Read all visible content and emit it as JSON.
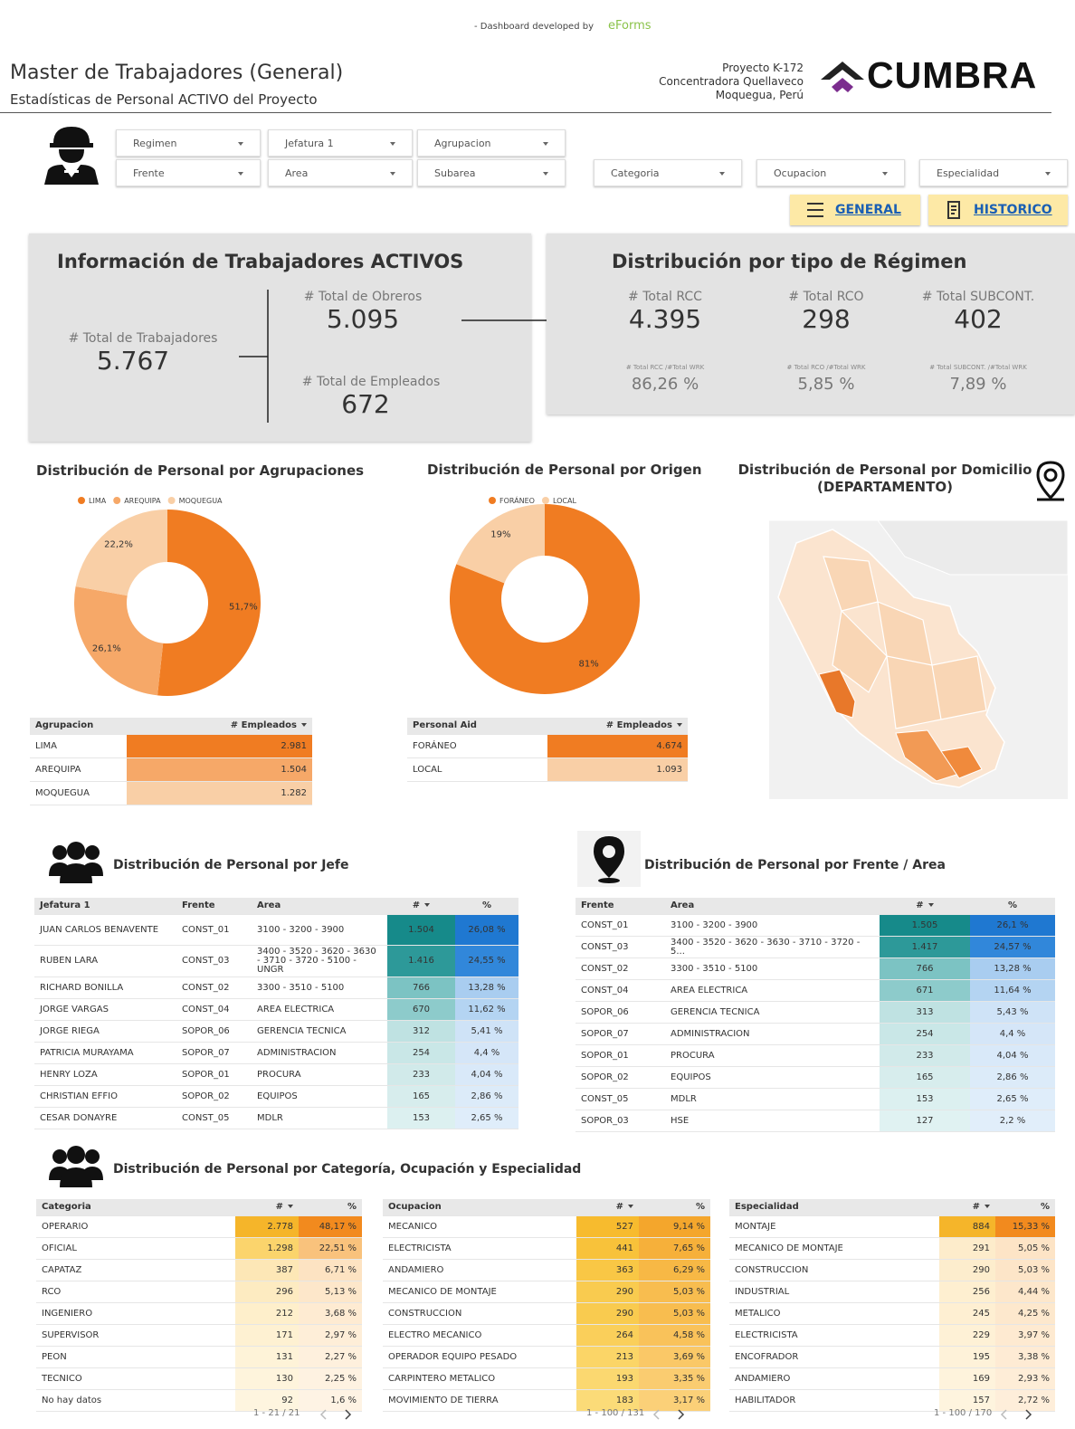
{
  "header": {
    "credit": "- Dashboard developed by",
    "brand": "eForms",
    "title": "Master de Trabajadores (General)",
    "subtitle": "Estadísticas de Personal ACTIVO del Proyecto",
    "project_lines": [
      "Proyecto K-172",
      "Concentradora Quellaveco",
      "Moquegua, Perú"
    ],
    "logo": "CUMBRA"
  },
  "filters": [
    "Regimen",
    "Jefatura 1",
    "Agrupacion",
    "Frente",
    "Area",
    "Subarea",
    "Categoria",
    "Ocupacion",
    "Especialidad"
  ],
  "buttons": [
    "GENERAL",
    "HISTORICO"
  ],
  "activos": {
    "title": "Información de Trabajadores ACTIVOS",
    "total_label": "# Total de Trabajadores",
    "total": "5.767",
    "obreros_label": "# Total de Obreros",
    "obreros": "5.095",
    "empleados_label": "# Total de Empleados",
    "empleados": "672"
  },
  "regimen": {
    "title": "Distribución por tipo de Régimen",
    "items": [
      {
        "label": "# Total RCC",
        "value": "4.395",
        "ratio_label": "# Total RCC /#Total WRK",
        "ratio": "86,26 %"
      },
      {
        "label": "# Total RCO",
        "value": "298",
        "ratio_label": "# Total RCO /#Total WRK",
        "ratio": "5,85 %"
      },
      {
        "label": "# Total SUBCONT.",
        "value": "402",
        "ratio_label": "# Total SUBCONT. /#Total WRK",
        "ratio": "7,89 %"
      }
    ]
  },
  "chart_data": [
    {
      "type": "pie",
      "title": "Distribución de Personal por Agrupaciones",
      "categories": [
        "LIMA",
        "AREQUIPA",
        "MOQUEGUA"
      ],
      "values": [
        51.7,
        26.1,
        22.2
      ],
      "value_labels": [
        "51,7%",
        "26,1%",
        "22,2%"
      ],
      "colors": [
        "#f07c22",
        "#f6a868",
        "#f9cfa6"
      ]
    },
    {
      "type": "pie",
      "title": "Distribución de Personal por Origen",
      "categories": [
        "FORÁNEO",
        "LOCAL"
      ],
      "values": [
        81,
        19
      ],
      "value_labels": [
        "81%",
        "19%"
      ],
      "colors": [
        "#f07c22",
        "#f9cfa6"
      ]
    }
  ],
  "agrupacion_table": {
    "headers": [
      "Agrupacion",
      "# Empleados"
    ],
    "rows": [
      [
        "LIMA",
        "2.981"
      ],
      [
        "AREQUIPA",
        "1.504"
      ],
      [
        "MOQUEGUA",
        "1.282"
      ]
    ]
  },
  "origen_table": {
    "headers": [
      "Personal Aid",
      "# Empleados"
    ],
    "rows": [
      [
        "FORÁNEO",
        "4.674"
      ],
      [
        "LOCAL",
        "1.093"
      ]
    ]
  },
  "domicilio": {
    "title": [
      "Distribución de Personal por Domicilio",
      "(DEPARTAMENTO)"
    ]
  },
  "jefe": {
    "title": "Distribución de Personal por Jefe",
    "table": {
      "headers": [
        "Jefatura 1",
        "Frente",
        "Area",
        "#",
        "%"
      ],
      "rows": [
        [
          "JUAN CARLOS BENAVENTE",
          "CONST_01",
          "3100 - 3200 - 3900",
          "1.504",
          "26,08 %"
        ],
        [
          "RUBEN LARA",
          "CONST_03",
          "3400 - 3520 - 3620 - 3630 - 3710 - 3720 - 5100 - UNGR",
          "1.416",
          "24,55 %"
        ],
        [
          "RICHARD BONILLA",
          "CONST_02",
          "3300 - 3510 - 5100",
          "766",
          "13,28 %"
        ],
        [
          "JORGE VARGAS",
          "CONST_04",
          "AREA ELECTRICA",
          "670",
          "11,62 %"
        ],
        [
          "JORGE RIEGA",
          "SOPOR_06",
          "GERENCIA TECNICA",
          "312",
          "5,41 %"
        ],
        [
          "PATRICIA MURAYAMA",
          "SOPOR_07",
          "ADMINISTRACION",
          "254",
          "4,4 %"
        ],
        [
          "HENRY LOZA",
          "SOPOR_01",
          "PROCURA",
          "233",
          "4,04 %"
        ],
        [
          "CHRISTIAN EFFIO",
          "SOPOR_02",
          "EQUIPOS",
          "165",
          "2,86 %"
        ],
        [
          "CESAR DONAYRE",
          "CONST_05",
          "MDLR",
          "153",
          "2,65 %"
        ]
      ]
    }
  },
  "frente": {
    "title": "Distribución de Personal por Frente / Area",
    "table": {
      "headers": [
        "Frente",
        "Area",
        "#",
        "%"
      ],
      "rows": [
        [
          "CONST_01",
          "3100 - 3200 - 3900",
          "1.505",
          "26,1 %"
        ],
        [
          "CONST_03",
          "3400 - 3520 - 3620 - 3630 - 3710 - 3720 - 5...",
          "1.417",
          "24,57 %"
        ],
        [
          "CONST_02",
          "3300 - 3510 - 5100",
          "766",
          "13,28 %"
        ],
        [
          "CONST_04",
          "AREA ELECTRICA",
          "671",
          "11,64 %"
        ],
        [
          "SOPOR_06",
          "GERENCIA TECNICA",
          "313",
          "5,43 %"
        ],
        [
          "SOPOR_07",
          "ADMINISTRACION",
          "254",
          "4,4 %"
        ],
        [
          "SOPOR_01",
          "PROCURA",
          "233",
          "4,04 %"
        ],
        [
          "SOPOR_02",
          "EQUIPOS",
          "165",
          "2,86 %"
        ],
        [
          "CONST_05",
          "MDLR",
          "153",
          "2,65 %"
        ],
        [
          "SOPOR_03",
          "HSE",
          "127",
          "2,2 %"
        ]
      ]
    }
  },
  "categorias": {
    "title": "Distribución de Personal por Categoría, Ocupación y Especialidad",
    "tables": [
      {
        "headers": [
          "Categoria",
          "#",
          "%"
        ],
        "rows": [
          [
            "OPERARIO",
            "2.778",
            "48,17 %"
          ],
          [
            "OFICIAL",
            "1.298",
            "22,51 %"
          ],
          [
            "CAPATAZ",
            "387",
            "6,71 %"
          ],
          [
            "RCO",
            "296",
            "5,13 %"
          ],
          [
            "INGENIERO",
            "212",
            "3,68 %"
          ],
          [
            "SUPERVISOR",
            "171",
            "2,97 %"
          ],
          [
            "PEON",
            "131",
            "2,27 %"
          ],
          [
            "TECNICO",
            "130",
            "2,25 %"
          ],
          [
            "No hay datos",
            "92",
            "1,6 %"
          ]
        ],
        "pagination": "1 - 21 / 21"
      },
      {
        "headers": [
          "Ocupacion",
          "#",
          "%"
        ],
        "rows": [
          [
            "MECANICO",
            "527",
            "9,14 %"
          ],
          [
            "ELECTRICISTA",
            "441",
            "7,65 %"
          ],
          [
            "ANDAMIERO",
            "363",
            "6,29 %"
          ],
          [
            "MECANICO DE MONTAJE",
            "290",
            "5,03 %"
          ],
          [
            "CONSTRUCCION",
            "290",
            "5,03 %"
          ],
          [
            "ELECTRO MECANICO",
            "264",
            "4,58 %"
          ],
          [
            "OPERADOR EQUIPO PESADO",
            "213",
            "3,69 %"
          ],
          [
            "CARPINTERO METALICO",
            "193",
            "3,35 %"
          ],
          [
            "MOVIMIENTO DE TIERRA",
            "183",
            "3,17 %"
          ]
        ],
        "pagination": "1 - 100 / 131"
      },
      {
        "headers": [
          "Especialidad",
          "#",
          "%"
        ],
        "rows": [
          [
            "MONTAJE",
            "884",
            "15,33 %"
          ],
          [
            "MECANICO DE MONTAJE",
            "291",
            "5,05 %"
          ],
          [
            "CONSTRUCCION",
            "290",
            "5,03 %"
          ],
          [
            "INDUSTRIAL",
            "256",
            "4,44 %"
          ],
          [
            "METALICO",
            "245",
            "4,25 %"
          ],
          [
            "ELECTRICISTA",
            "229",
            "3,97 %"
          ],
          [
            "ENCOFRADOR",
            "195",
            "3,38 %"
          ],
          [
            "ANDAMIERO",
            "169",
            "2,93 %"
          ],
          [
            "HABILITADOR",
            "157",
            "2,72 %"
          ]
        ],
        "pagination": "1 - 100 / 170"
      }
    ]
  }
}
